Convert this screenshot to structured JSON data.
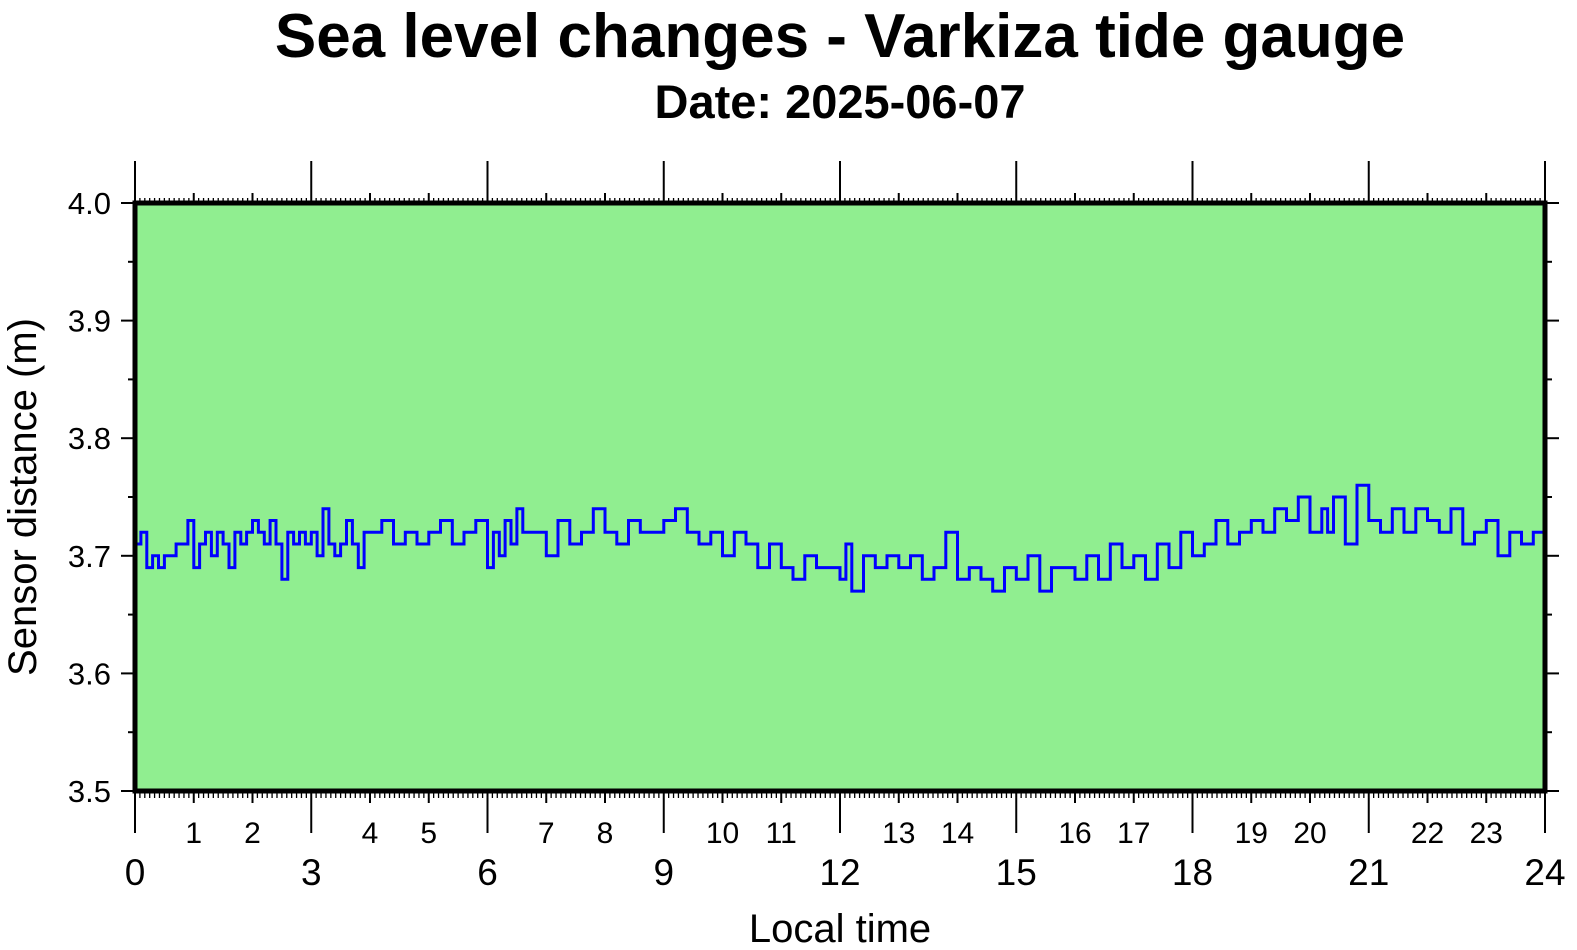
{
  "chart_data": {
    "type": "line",
    "title": "Sea level changes - Varkiza tide gauge",
    "subtitle": "Date: 2025-06-07",
    "xlabel": "Local time",
    "ylabel": "Sensor distance (m)",
    "xlim": [
      0,
      24
    ],
    "ylim": [
      3.5,
      4.0
    ],
    "y_ticks": [
      "3.5",
      "3.6",
      "3.7",
      "3.8",
      "3.9",
      "4.0"
    ],
    "x_major_ticks": [
      "0",
      "3",
      "6",
      "9",
      "12",
      "15",
      "18",
      "21",
      "24"
    ],
    "x_minor_tick_labels": [
      "1",
      "2",
      "4",
      "5",
      "7",
      "8",
      "10",
      "11",
      "13",
      "14",
      "16",
      "17",
      "19",
      "20",
      "22",
      "23"
    ],
    "grid": false,
    "colors": {
      "plot_background": "#90ee90",
      "series_line": "#0000ff",
      "frame": "#000000"
    },
    "series": [
      {
        "x": [
          0,
          0.1,
          0.2,
          0.3,
          0.4,
          0.5,
          0.6,
          0.7,
          0.8,
          0.9,
          1.0,
          1.1,
          1.2,
          1.3,
          1.4,
          1.5,
          1.6,
          1.7,
          1.8,
          1.9,
          2.0,
          2.1,
          2.2,
          2.3,
          2.4,
          2.5,
          2.6,
          2.7,
          2.8,
          2.9,
          3.0,
          3.1,
          3.2,
          3.3,
          3.4,
          3.5,
          3.6,
          3.7,
          3.8,
          3.9,
          4.0,
          4.2,
          4.4,
          4.6,
          4.8,
          5.0,
          5.2,
          5.4,
          5.6,
          5.8,
          6.0,
          6.1,
          6.2,
          6.3,
          6.4,
          6.5,
          6.6,
          6.8,
          7.0,
          7.2,
          7.4,
          7.6,
          7.8,
          8.0,
          8.2,
          8.4,
          8.6,
          8.8,
          9.0,
          9.2,
          9.4,
          9.6,
          9.8,
          10.0,
          10.2,
          10.4,
          10.6,
          10.8,
          11.0,
          11.2,
          11.4,
          11.6,
          11.8,
          12.0,
          12.1,
          12.2,
          12.4,
          12.6,
          12.8,
          13.0,
          13.2,
          13.4,
          13.6,
          13.8,
          14.0,
          14.2,
          14.4,
          14.6,
          14.8,
          15.0,
          15.2,
          15.4,
          15.6,
          15.8,
          16.0,
          16.2,
          16.4,
          16.6,
          16.8,
          17.0,
          17.2,
          17.4,
          17.6,
          17.8,
          18.0,
          18.2,
          18.4,
          18.6,
          18.8,
          19.0,
          19.2,
          19.4,
          19.6,
          19.8,
          20.0,
          20.2,
          20.3,
          20.4,
          20.6,
          20.8,
          21.0,
          21.2,
          21.4,
          21.6,
          21.8,
          22.0,
          22.2,
          22.4,
          22.6,
          22.8,
          23.0,
          23.2,
          23.4,
          23.6,
          23.8,
          24.0
        ],
        "y": [
          3.71,
          3.72,
          3.69,
          3.7,
          3.69,
          3.7,
          3.7,
          3.71,
          3.71,
          3.73,
          3.69,
          3.71,
          3.72,
          3.7,
          3.72,
          3.71,
          3.69,
          3.72,
          3.71,
          3.72,
          3.73,
          3.72,
          3.71,
          3.73,
          3.71,
          3.68,
          3.72,
          3.71,
          3.72,
          3.71,
          3.72,
          3.7,
          3.74,
          3.71,
          3.7,
          3.71,
          3.73,
          3.71,
          3.69,
          3.72,
          3.72,
          3.73,
          3.71,
          3.72,
          3.71,
          3.72,
          3.73,
          3.71,
          3.72,
          3.73,
          3.69,
          3.72,
          3.7,
          3.73,
          3.71,
          3.74,
          3.72,
          3.72,
          3.7,
          3.73,
          3.71,
          3.72,
          3.74,
          3.72,
          3.71,
          3.73,
          3.72,
          3.72,
          3.73,
          3.74,
          3.72,
          3.71,
          3.72,
          3.7,
          3.72,
          3.71,
          3.69,
          3.71,
          3.69,
          3.68,
          3.7,
          3.69,
          3.69,
          3.68,
          3.71,
          3.67,
          3.7,
          3.69,
          3.7,
          3.69,
          3.7,
          3.68,
          3.69,
          3.72,
          3.68,
          3.69,
          3.68,
          3.67,
          3.69,
          3.68,
          3.7,
          3.67,
          3.69,
          3.69,
          3.68,
          3.7,
          3.68,
          3.71,
          3.69,
          3.7,
          3.68,
          3.71,
          3.69,
          3.72,
          3.7,
          3.71,
          3.73,
          3.71,
          3.72,
          3.73,
          3.72,
          3.74,
          3.73,
          3.75,
          3.72,
          3.74,
          3.72,
          3.75,
          3.71,
          3.76,
          3.73,
          3.72,
          3.74,
          3.72,
          3.74,
          3.73,
          3.72,
          3.74,
          3.71,
          3.72,
          3.73,
          3.7,
          3.72,
          3.71,
          3.72,
          3.71
        ]
      }
    ]
  }
}
